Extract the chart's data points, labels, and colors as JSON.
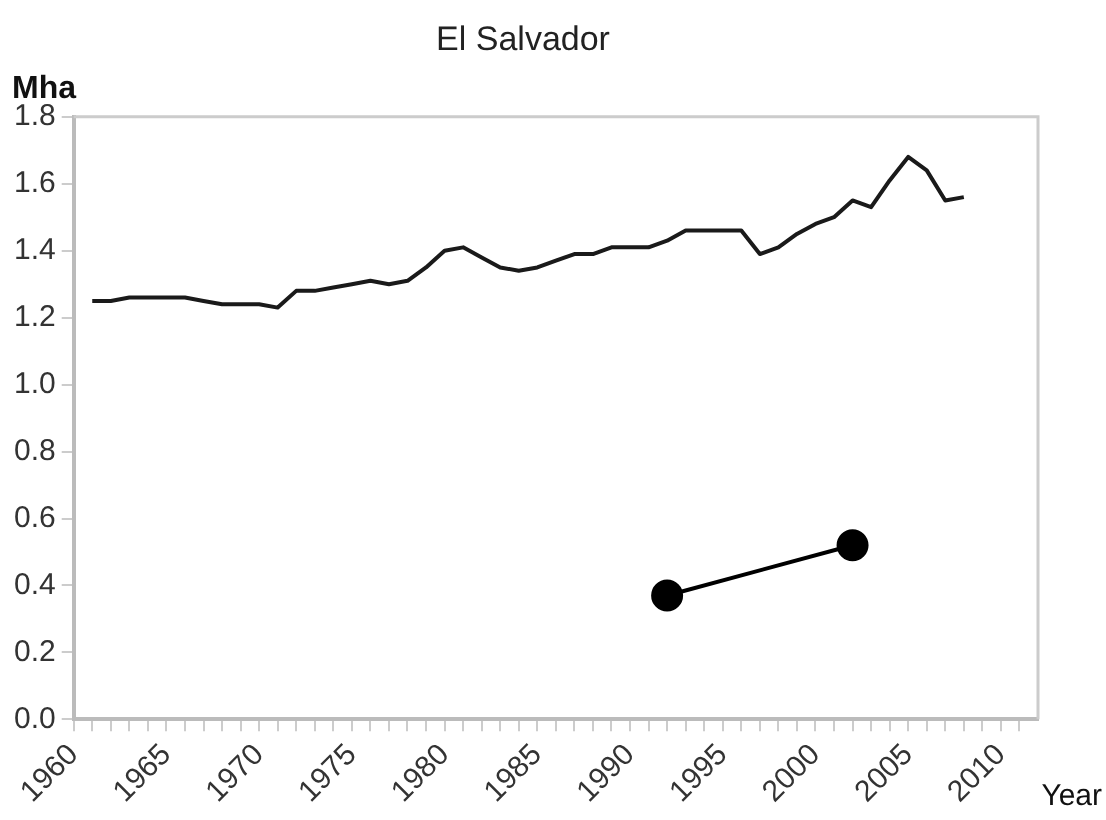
{
  "chart_data": {
    "type": "line",
    "title": "El Salvador",
    "ylabel": "Mha",
    "xlabel": "Year",
    "xlim": [
      1960,
      2012
    ],
    "xticks": [
      1960,
      {
        "value": 1961,
        "label": null
      },
      {
        "value": 1962,
        "label": null
      },
      {
        "value": 1963,
        "label": null
      },
      {
        "value": 1964,
        "label": null
      },
      1965,
      {
        "value": 1966,
        "label": null
      },
      {
        "value": 1967,
        "label": null
      },
      {
        "value": 1968,
        "label": null
      },
      {
        "value": 1969,
        "label": null
      },
      1970,
      {
        "value": 1971,
        "label": null
      },
      {
        "value": 1972,
        "label": null
      },
      {
        "value": 1973,
        "label": null
      },
      {
        "value": 1974,
        "label": null
      },
      1975,
      {
        "value": 1976,
        "label": null
      },
      {
        "value": 1977,
        "label": null
      },
      {
        "value": 1978,
        "label": null
      },
      {
        "value": 1979,
        "label": null
      },
      1980,
      {
        "value": 1981,
        "label": null
      },
      {
        "value": 1982,
        "label": null
      },
      {
        "value": 1983,
        "label": null
      },
      {
        "value": 1984,
        "label": null
      },
      1985,
      {
        "value": 1986,
        "label": null
      },
      {
        "value": 1987,
        "label": null
      },
      {
        "value": 1988,
        "label": null
      },
      {
        "value": 1989,
        "label": null
      },
      1990,
      {
        "value": 1991,
        "label": null
      },
      {
        "value": 1992,
        "label": null
      },
      {
        "value": 1993,
        "label": null
      },
      {
        "value": 1994,
        "label": null
      },
      1995,
      {
        "value": 1996,
        "label": null
      },
      {
        "value": 1997,
        "label": null
      },
      {
        "value": 1998,
        "label": null
      },
      {
        "value": 1999,
        "label": null
      },
      2000,
      {
        "value": 2001,
        "label": null
      },
      {
        "value": 2002,
        "label": null
      },
      {
        "value": 2003,
        "label": null
      },
      {
        "value": 2004,
        "label": null
      },
      2005,
      {
        "value": 2006,
        "label": null
      },
      {
        "value": 2007,
        "label": null
      },
      {
        "value": 2008,
        "label": null
      },
      {
        "value": 2009,
        "label": null
      },
      2010,
      {
        "value": 2011,
        "label": null
      }
    ],
    "ylim": [
      0,
      1.8
    ],
    "yticks": [
      {
        "value": 0,
        "label": "0.0"
      },
      {
        "value": 0.2,
        "label": "0.2"
      },
      {
        "value": 0.4,
        "label": "0.4"
      },
      {
        "value": 0.6,
        "label": "0.6"
      },
      {
        "value": 0.8,
        "label": "0.8"
      },
      {
        "value": 1,
        "label": "1.0"
      },
      {
        "value": 1.2,
        "label": "1.2"
      },
      {
        "value": 1.4,
        "label": "1.4"
      },
      {
        "value": 1.6,
        "label": "1.6"
      },
      {
        "value": 1.8,
        "label": "1.8"
      }
    ],
    "grid": false,
    "legend": false,
    "series": [
      {
        "color": "#1a1a1a",
        "marker": "none",
        "x": [
          1961,
          1962,
          1963,
          1964,
          1965,
          1966,
          1967,
          1968,
          1969,
          1970,
          1971,
          1972,
          1973,
          1974,
          1975,
          1976,
          1977,
          1978,
          1979,
          1980,
          1981,
          1982,
          1983,
          1984,
          1985,
          1986,
          1987,
          1988,
          1989,
          1990,
          1991,
          1992,
          1993,
          1994,
          1995,
          1996,
          1997,
          1998,
          1999,
          2000,
          2001,
          2002,
          2003,
          2004,
          2005,
          2006,
          2007,
          2008
        ],
        "values": [
          1.25,
          1.25,
          1.26,
          1.26,
          1.26,
          1.26,
          1.25,
          1.24,
          1.24,
          1.24,
          1.23,
          1.28,
          1.28,
          1.29,
          1.3,
          1.31,
          1.3,
          1.31,
          1.35,
          1.4,
          1.41,
          1.38,
          1.35,
          1.34,
          1.35,
          1.37,
          1.39,
          1.39,
          1.41,
          1.41,
          1.41,
          1.43,
          1.46,
          1.46,
          1.46,
          1.46,
          1.39,
          1.41,
          1.45,
          1.48,
          1.5,
          1.55,
          1.53,
          1.61,
          1.68,
          1.64,
          1.55,
          1.56
        ]
      },
      {
        "color": "#000000",
        "marker": "circle",
        "x": [
          1992,
          2002
        ],
        "values": [
          0.37,
          0.52
        ]
      }
    ]
  }
}
